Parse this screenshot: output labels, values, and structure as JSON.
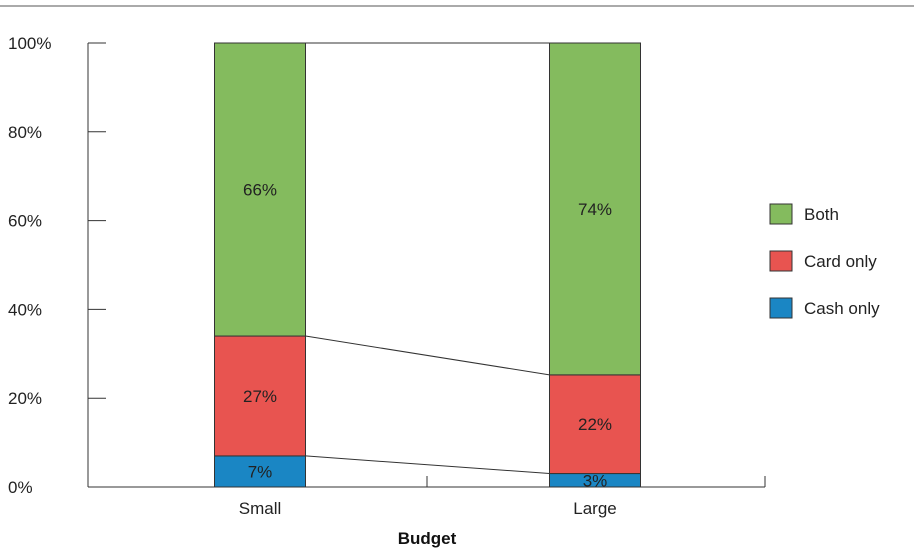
{
  "chart_data": {
    "type": "bar",
    "stacked": true,
    "percent_stacked": true,
    "categories": [
      "Small",
      "Large"
    ],
    "series": [
      {
        "name": "Cash only",
        "values": [
          7,
          3
        ],
        "labels": [
          "7%",
          "3%"
        ],
        "color": "#1a86c4"
      },
      {
        "name": "Card only",
        "values": [
          27,
          22
        ],
        "labels": [
          "27%",
          "22%"
        ],
        "color": "#e85450"
      },
      {
        "name": "Both",
        "values": [
          66,
          74
        ],
        "labels": [
          "66%",
          "74%"
        ],
        "color": "#84bb5e"
      }
    ],
    "title": "",
    "xlabel": "Budget",
    "ylabel": "",
    "ylim": [
      0,
      100
    ],
    "yticks": [
      "0%",
      "20%",
      "40%",
      "60%",
      "80%",
      "100%"
    ],
    "connector_lines": true,
    "legend_position": "right",
    "legend_order": [
      "Both",
      "Card only",
      "Cash only"
    ],
    "grid": false
  }
}
